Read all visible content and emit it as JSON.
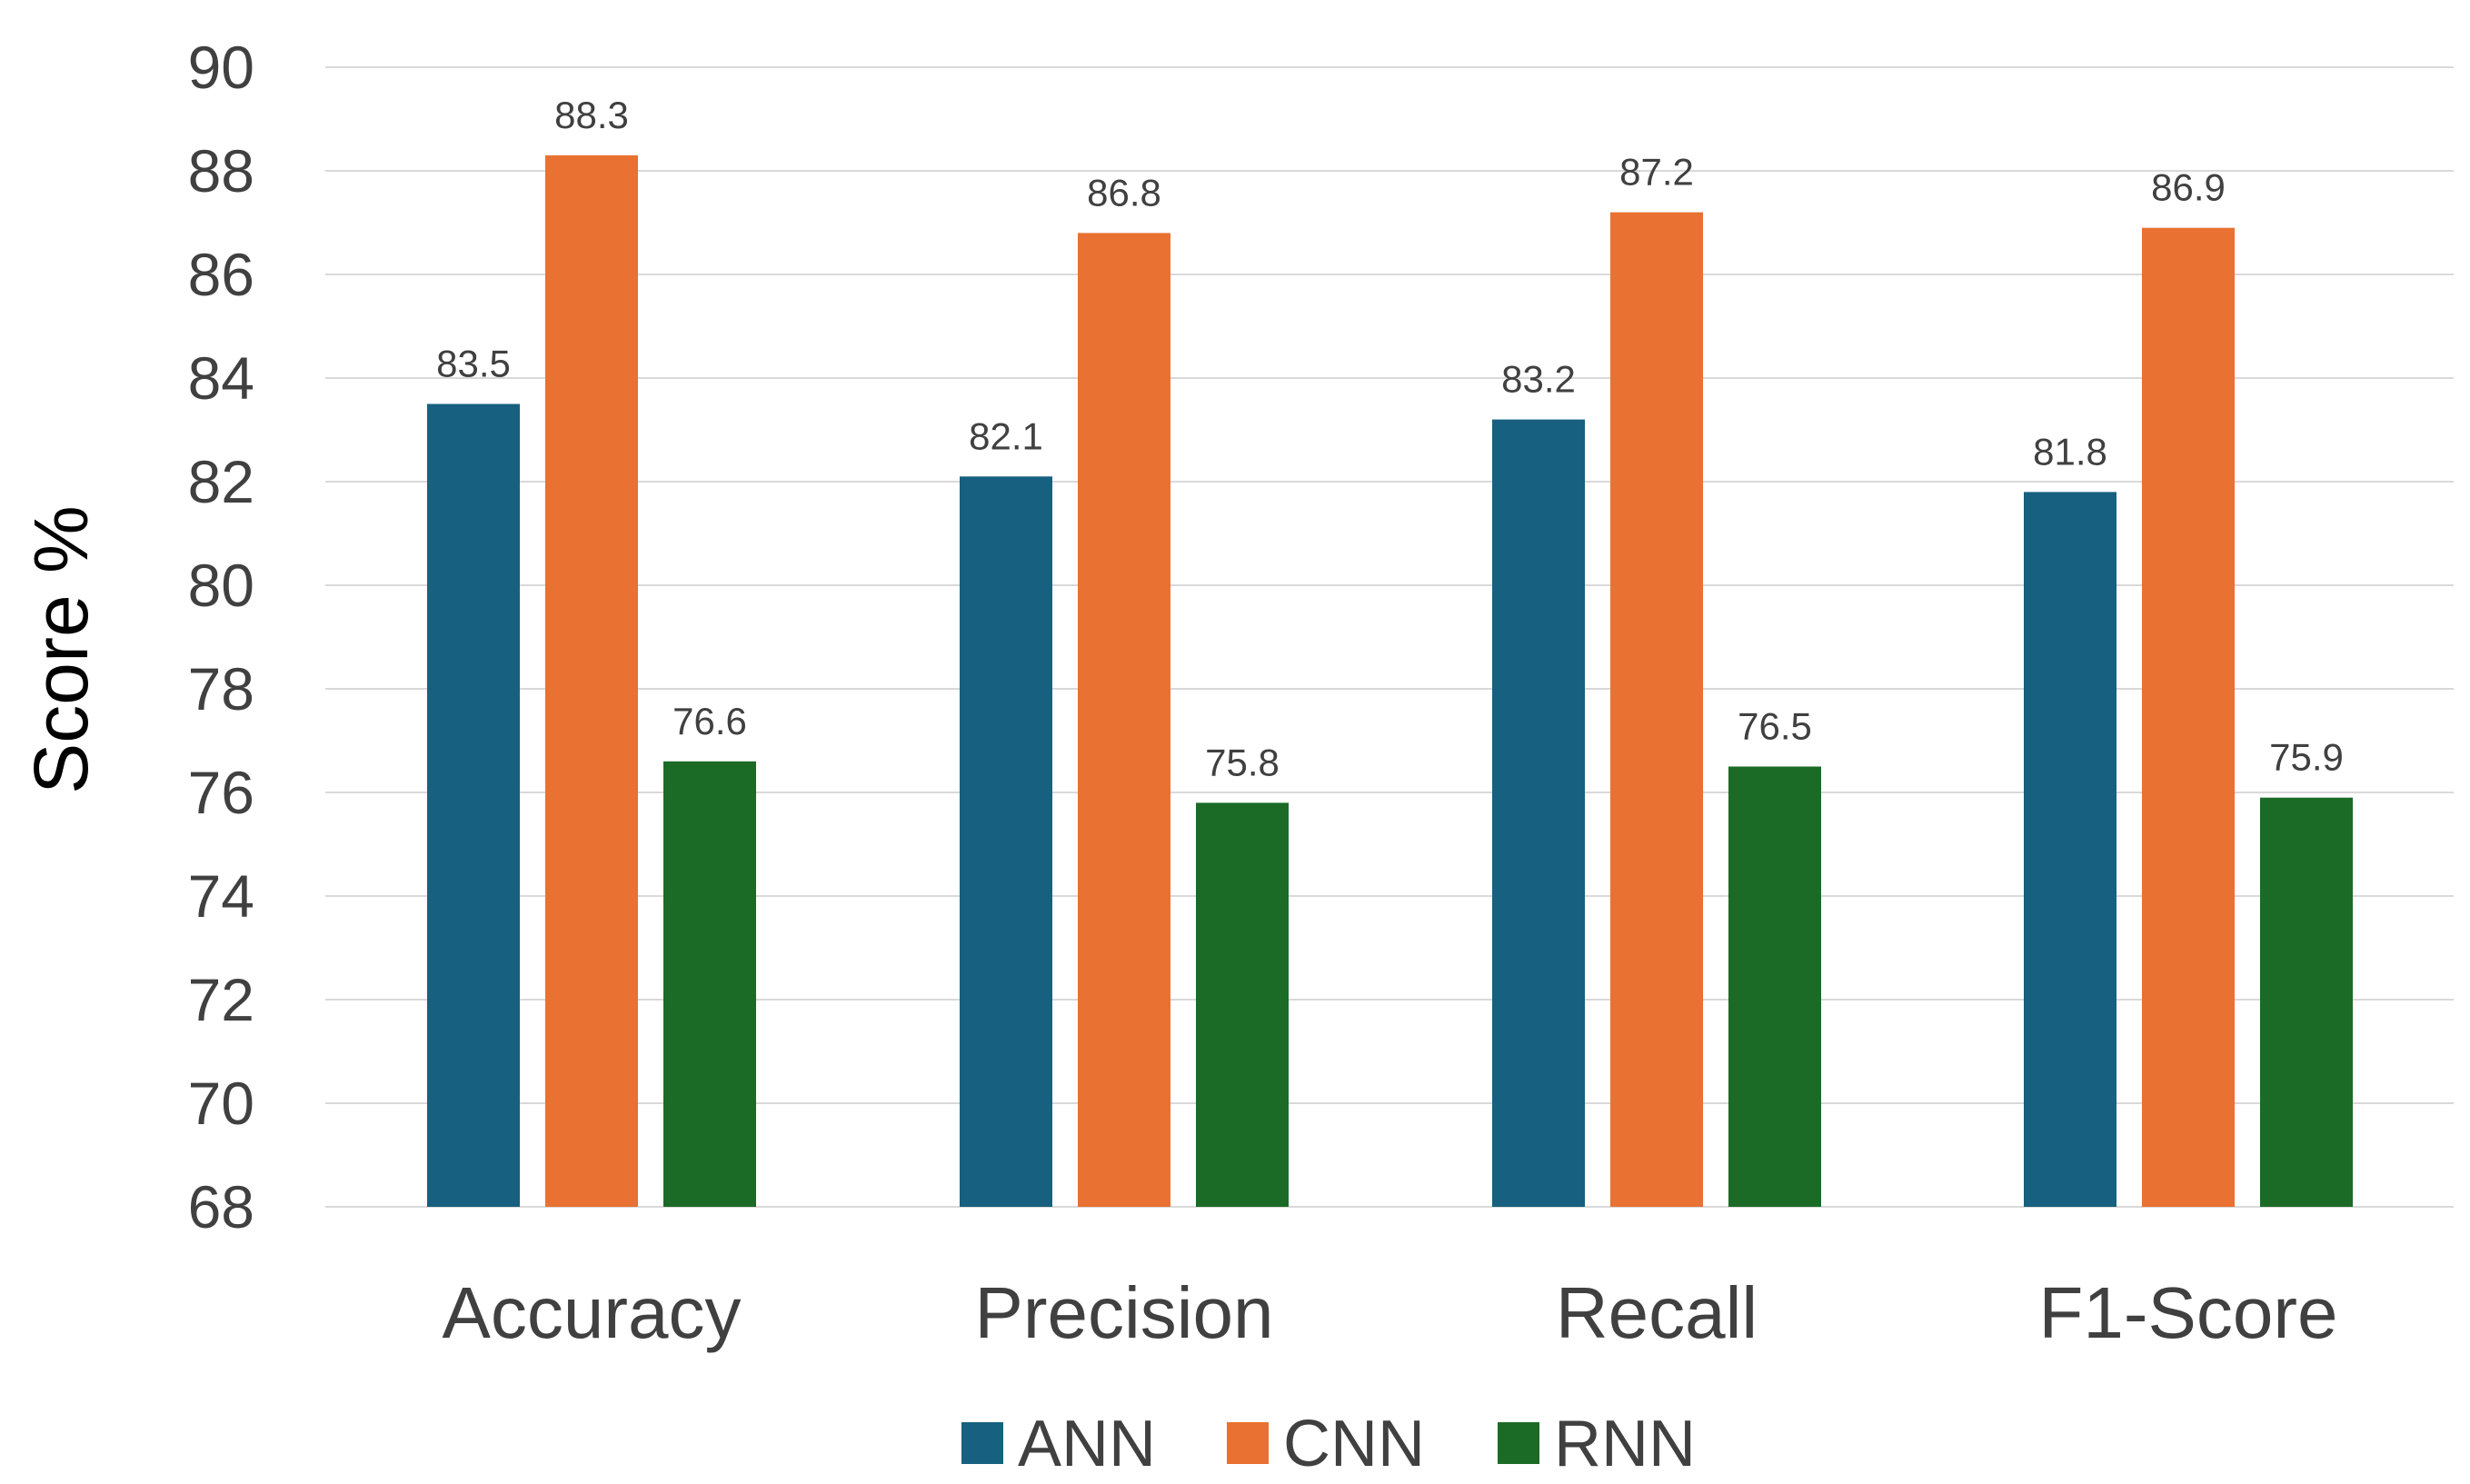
{
  "chart_data": {
    "type": "bar",
    "title": "",
    "xlabel": "",
    "ylabel": "Score %",
    "ylim": [
      68,
      90
    ],
    "yticks": [
      68,
      70,
      72,
      74,
      76,
      78,
      80,
      82,
      84,
      86,
      88,
      90
    ],
    "ytick_labels": [
      "68",
      "70",
      "72",
      "74",
      "76",
      "78",
      "80",
      "82",
      "84",
      "86",
      "88",
      "90"
    ],
    "grid": true,
    "legend_position": "bottom",
    "categories": [
      "Accuracy",
      "Precision",
      "Recall",
      "F1-Score"
    ],
    "series": [
      {
        "name": "ANN",
        "color": "#17607f",
        "values": [
          83.5,
          82.1,
          83.2,
          81.8
        ],
        "labels": [
          "83.5",
          "82.1",
          "83.2",
          "81.8"
        ]
      },
      {
        "name": "CNN",
        "color": "#e97132",
        "values": [
          88.3,
          86.8,
          87.2,
          86.9
        ],
        "labels": [
          "88.3",
          "86.8",
          "87.2",
          "86.9"
        ]
      },
      {
        "name": "RNN",
        "color": "#1b6b26",
        "values": [
          76.6,
          75.8,
          76.5,
          75.9
        ],
        "labels": [
          "76.6",
          "75.8",
          "76.5",
          "75.9"
        ]
      }
    ]
  }
}
